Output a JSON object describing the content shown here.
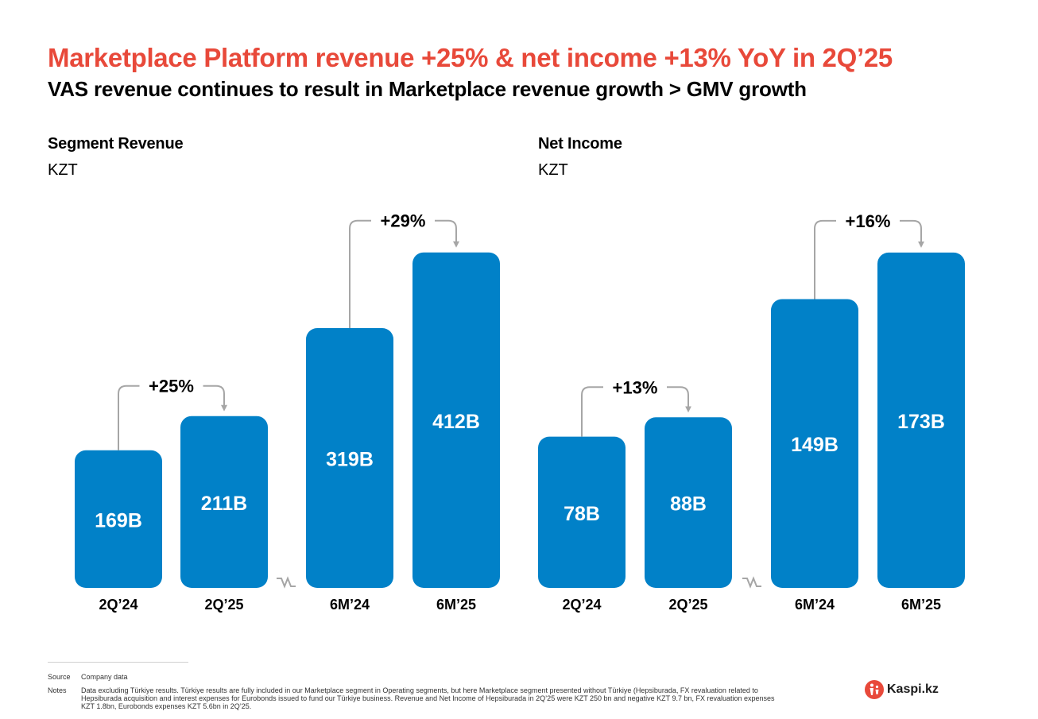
{
  "header": {
    "title": "Marketplace Platform revenue +25% & net income +13% YoY in 2Q’25",
    "subtitle": "VAS revenue continues to result in Marketplace revenue growth > GMV growth"
  },
  "colors": {
    "title": "#e8493a",
    "bar": "#0181c8",
    "bar_label": "#ffffff",
    "connector": "#a6a6a6"
  },
  "chart_data": [
    {
      "type": "bar",
      "title": "Segment Revenue",
      "unit": "KZT",
      "categories": [
        "2Q’24",
        "2Q’25",
        "6M’24",
        "6M’25"
      ],
      "values": [
        169,
        211,
        319,
        412
      ],
      "value_labels": [
        "169B",
        "211B",
        "319B",
        "412B"
      ],
      "axis_break": "between 2Q’25 and 6M’24",
      "growth": [
        {
          "from": "2Q’24",
          "to": "2Q’25",
          "label": "+25%"
        },
        {
          "from": "6M’24",
          "to": "6M’25",
          "label": "+29%"
        }
      ]
    },
    {
      "type": "bar",
      "title": "Net Income",
      "unit": "KZT",
      "categories": [
        "2Q’24",
        "2Q’25",
        "6M’24",
        "6M’25"
      ],
      "values": [
        78,
        88,
        149,
        173
      ],
      "value_labels": [
        "78B",
        "88B",
        "149B",
        "173B"
      ],
      "axis_break": "between 2Q’25 and 6M’24",
      "growth": [
        {
          "from": "2Q’24",
          "to": "2Q’25",
          "label": "+13%"
        },
        {
          "from": "6M’24",
          "to": "6M’25",
          "label": "+16%"
        }
      ]
    }
  ],
  "footer": {
    "source_label": "Source",
    "source_text": "Company data",
    "notes_label": "Notes",
    "notes_text": "Data excluding Türkiye results. Türkiye results are fully included in our Marketplace segment in Operating segments, but here Marketplace segment presented without Türkiye (Hepsiburada, FX revaluation related to Hepsiburada acquisition and interest expenses for Eurobonds issued to fund our Türkiye business. Revenue and Net Income of Hepsiburada in 2Q’25 were KZT 250 bn and negative KZT 9.7 bn, FX revaluation expenses KZT 1.8bn, Eurobonds expenses KZT 5.6bn in 2Q’25."
  },
  "logo": {
    "text": "Kaspi.kz",
    "icon": "kaspi-logo-icon"
  }
}
